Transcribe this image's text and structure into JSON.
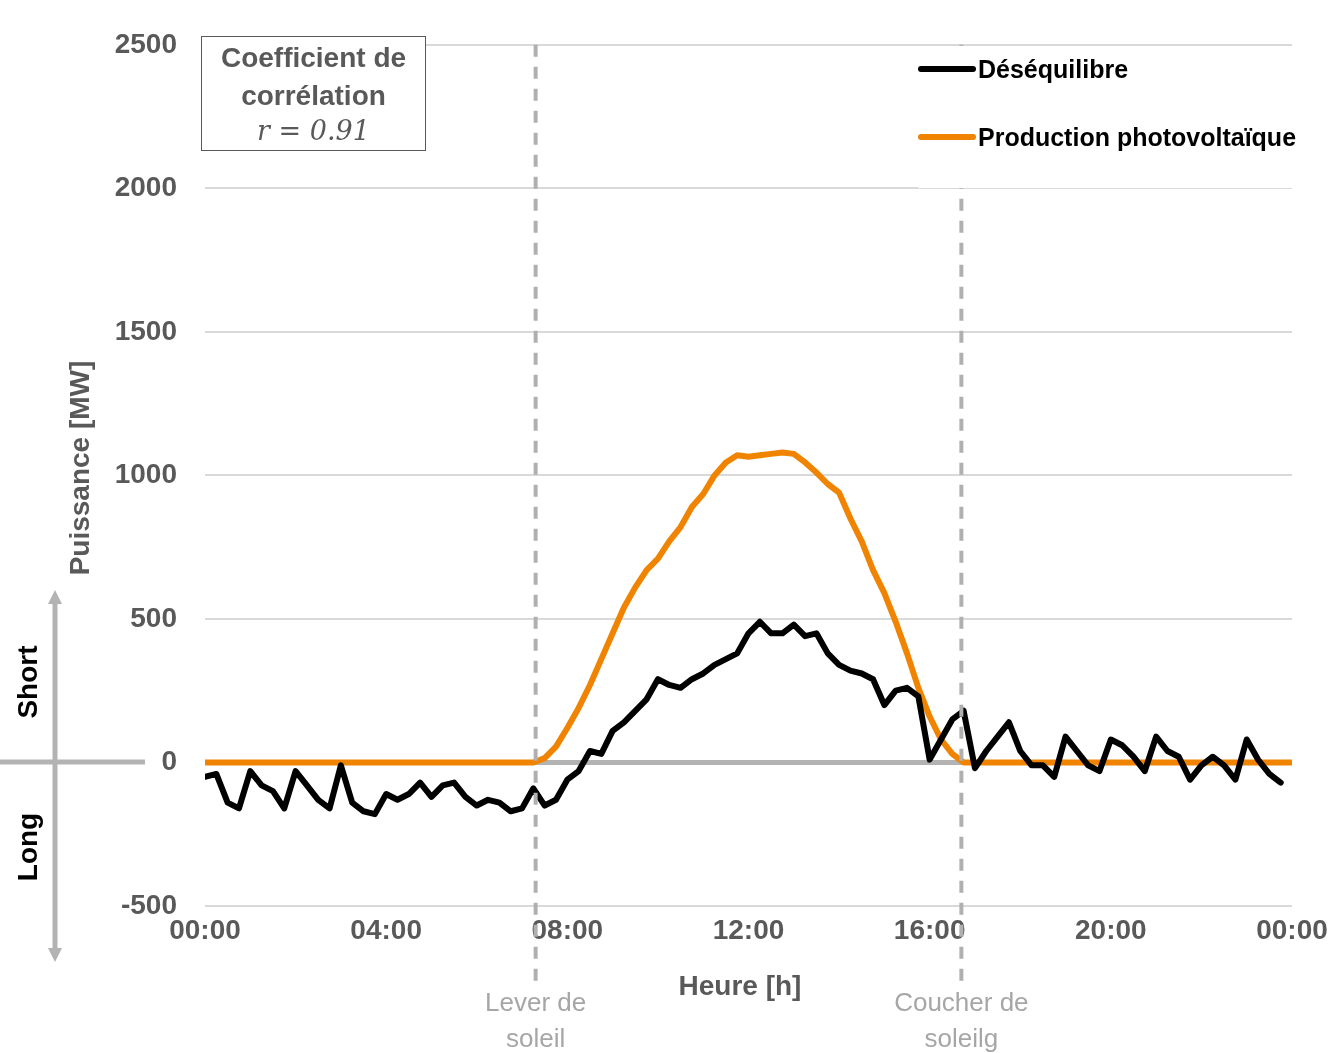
{
  "chart_data": {
    "type": "line",
    "xlabel": "Heure [h]",
    "ylabel": "Puissance [MW]",
    "xlim": [
      0,
      24
    ],
    "xticks": [
      {
        "value": 0,
        "label": "00:00"
      },
      {
        "value": 4,
        "label": "04:00"
      },
      {
        "value": 8,
        "label": "08:00"
      },
      {
        "value": 12,
        "label": "12:00"
      },
      {
        "value": 16,
        "label": "16:00"
      },
      {
        "value": 20,
        "label": "20:00"
      },
      {
        "value": 24,
        "label": "00:00"
      }
    ],
    "ylim": [
      -500,
      2500
    ],
    "yticks": [
      -500,
      0,
      500,
      1000,
      1500,
      2000,
      2500
    ],
    "grid": "y",
    "legend": "top right",
    "line_style": "solid",
    "marker": "none",
    "series": [
      {
        "name": "Déséquilibre",
        "color": "#000000",
        "x": [
          0,
          0.25,
          0.5,
          0.75,
          1,
          1.25,
          1.5,
          1.75,
          2,
          2.25,
          2.5,
          2.75,
          3,
          3.25,
          3.5,
          3.75,
          4,
          4.25,
          4.5,
          4.75,
          5,
          5.25,
          5.5,
          5.75,
          6,
          6.25,
          6.5,
          6.75,
          7,
          7.25,
          7.5,
          7.75,
          8,
          8.25,
          8.5,
          8.75,
          9,
          9.25,
          9.5,
          9.75,
          10,
          10.25,
          10.5,
          10.75,
          11,
          11.25,
          11.5,
          11.75,
          12,
          12.25,
          12.5,
          12.75,
          13,
          13.25,
          13.5,
          13.75,
          14,
          14.25,
          14.5,
          14.75,
          15,
          15.25,
          15.5,
          15.75,
          16,
          16.25,
          16.5,
          16.75,
          17,
          17.25,
          17.5,
          17.75,
          18,
          18.25,
          18.5,
          18.75,
          19,
          19.25,
          19.5,
          19.75,
          20,
          20.25,
          20.5,
          20.75,
          21,
          21.25,
          21.5,
          21.75,
          22,
          22.25,
          22.5,
          22.75,
          23,
          23.25,
          23.5,
          23.75
        ],
        "values": [
          -50,
          -40,
          -140,
          -160,
          -30,
          -80,
          -100,
          -160,
          -30,
          -80,
          -130,
          -160,
          -10,
          -140,
          -170,
          -180,
          -110,
          -130,
          -110,
          -70,
          -120,
          -80,
          -70,
          -120,
          -150,
          -130,
          -140,
          -170,
          -160,
          -90,
          -150,
          -130,
          -60,
          -30,
          40,
          30,
          110,
          140,
          180,
          220,
          290,
          270,
          260,
          290,
          310,
          340,
          360,
          380,
          450,
          490,
          450,
          450,
          480,
          440,
          450,
          380,
          340,
          320,
          310,
          290,
          200,
          250,
          260,
          230,
          10,
          80,
          150,
          180,
          -20,
          40,
          90,
          140,
          40,
          -10,
          -10,
          -50,
          90,
          40,
          -10,
          -30,
          80,
          60,
          20,
          -30,
          90,
          40,
          20,
          -60,
          -10,
          20,
          -10,
          -60,
          80,
          10,
          -40,
          -70
        ]
      },
      {
        "name": "Production photovoltaïque",
        "color": "#f08400",
        "x": [
          0,
          7.25,
          7.5,
          7.75,
          8,
          8.25,
          8.5,
          8.75,
          9,
          9.25,
          9.5,
          9.75,
          10,
          10.25,
          10.5,
          10.75,
          11,
          11.25,
          11.5,
          11.75,
          12,
          12.25,
          12.5,
          12.75,
          13,
          13.25,
          13.5,
          13.75,
          14,
          14.25,
          14.5,
          14.75,
          15,
          15.25,
          15.5,
          15.75,
          16,
          16.25,
          16.5,
          16.75,
          24
        ],
        "values": [
          0,
          0,
          15,
          55,
          120,
          190,
          270,
          360,
          450,
          540,
          610,
          670,
          710,
          770,
          820,
          890,
          935,
          1000,
          1045,
          1070,
          1065,
          1070,
          1075,
          1080,
          1075,
          1045,
          1010,
          970,
          940,
          850,
          770,
          670,
          590,
          490,
          380,
          260,
          160,
          80,
          30,
          0,
          0
        ]
      }
    ],
    "ref_lines": [
      {
        "axis": "x",
        "value": 7.3,
        "label": "Lever de soleil",
        "color": "#b0b0b0",
        "line_style": "dashed"
      },
      {
        "axis": "x",
        "value": 16.7,
        "label": "Coucher de soleilg",
        "color": "#b0b0b0",
        "line_style": "dashed"
      }
    ],
    "annotations": [
      "Coefficient de corrélation",
      "r = 0.91",
      "Short",
      "Long"
    ]
  }
}
